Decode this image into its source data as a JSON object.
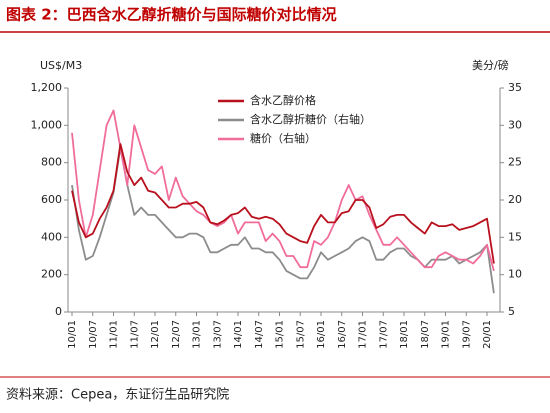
{
  "chart_data": {
    "type": "line",
    "title": "图表 2：巴西含水乙醇折糖价与国际糖价对比情况",
    "source": "资料来源：Cepea，东证衍生品研究院",
    "ylabel": "US$/M3",
    "y2label": "美分/磅",
    "categories": [
      "10/01",
      null,
      null,
      "10/07",
      null,
      null,
      "11/01",
      null,
      null,
      "11/07",
      null,
      null,
      "12/01",
      null,
      null,
      "12/07",
      null,
      null,
      "13/01",
      null,
      null,
      "13/07",
      null,
      null,
      "14/01",
      null,
      null,
      "14/07",
      null,
      null,
      "15/01",
      null,
      null,
      "15/07",
      null,
      null,
      "16/01",
      null,
      null,
      "16/07",
      null,
      null,
      "17/01",
      null,
      null,
      "17/07",
      null,
      null,
      "18/01",
      null,
      null,
      "18/07",
      null,
      null,
      "19/01",
      null,
      null,
      "19/07",
      null,
      null,
      "20/01",
      null
    ],
    "ylim": [
      0,
      1200
    ],
    "yticks": [
      0,
      200,
      400,
      600,
      800,
      {
        "value": 1000,
        "label": "1,000"
      },
      {
        "value": 1200,
        "label": "1,200"
      }
    ],
    "y2lim": [
      5,
      35
    ],
    "y2ticks": [
      5,
      10,
      15,
      20,
      25,
      30,
      35
    ],
    "series": [
      {
        "name": "含水乙醇价格",
        "color": "#b8101c",
        "values": [
          650,
          480,
          400,
          420,
          500,
          560,
          650,
          900,
          750,
          680,
          720,
          650,
          640,
          600,
          560,
          560,
          580,
          580,
          590,
          560,
          480,
          470,
          490,
          520,
          530,
          560,
          510,
          500,
          510,
          500,
          470,
          420,
          400,
          380,
          370,
          460,
          520,
          480,
          480,
          530,
          540,
          600,
          600,
          560,
          450,
          470,
          510,
          520,
          520,
          480,
          450,
          420,
          480,
          460,
          460,
          470,
          440,
          450,
          460,
          480,
          500,
          260
        ]
      },
      {
        "name": "含水乙醇折糖价（右轴）",
        "color": "#8c8c8c",
        "axis": "y2",
        "values": [
          22,
          16,
          12,
          12.5,
          15,
          18,
          21,
          27,
          22,
          18,
          19,
          18,
          18,
          17,
          16,
          15,
          15,
          15.5,
          15.5,
          15,
          13,
          13,
          13.5,
          14,
          14,
          15,
          13.5,
          13.5,
          13,
          13,
          12,
          10.5,
          10,
          9.5,
          9.5,
          11,
          13,
          12,
          12.5,
          13,
          13.5,
          14.5,
          15,
          14.5,
          12,
          12,
          13,
          13.5,
          13.5,
          12.5,
          12,
          11,
          12,
          12,
          12,
          12.5,
          11.5,
          12,
          12.5,
          13,
          14,
          7.5
        ]
      },
      {
        "name": "糖价（右轴）",
        "color": "#f06c9b",
        "axis": "y2",
        "values": [
          29,
          20,
          15,
          18,
          24,
          30,
          32,
          27,
          22,
          30,
          27,
          24,
          23.5,
          24.5,
          20,
          23,
          20.5,
          19.5,
          18.5,
          18,
          17,
          16.5,
          17,
          18,
          15.5,
          17,
          17,
          17,
          14.5,
          15.5,
          14.5,
          12.5,
          12.5,
          11,
          11,
          14.5,
          14,
          15,
          17,
          20,
          22,
          20,
          20.5,
          18,
          16,
          14,
          14,
          15,
          14,
          13,
          12,
          11,
          11,
          12.5,
          13,
          12.5,
          12,
          12,
          11.5,
          12.5,
          14,
          10.5
        ]
      }
    ]
  }
}
